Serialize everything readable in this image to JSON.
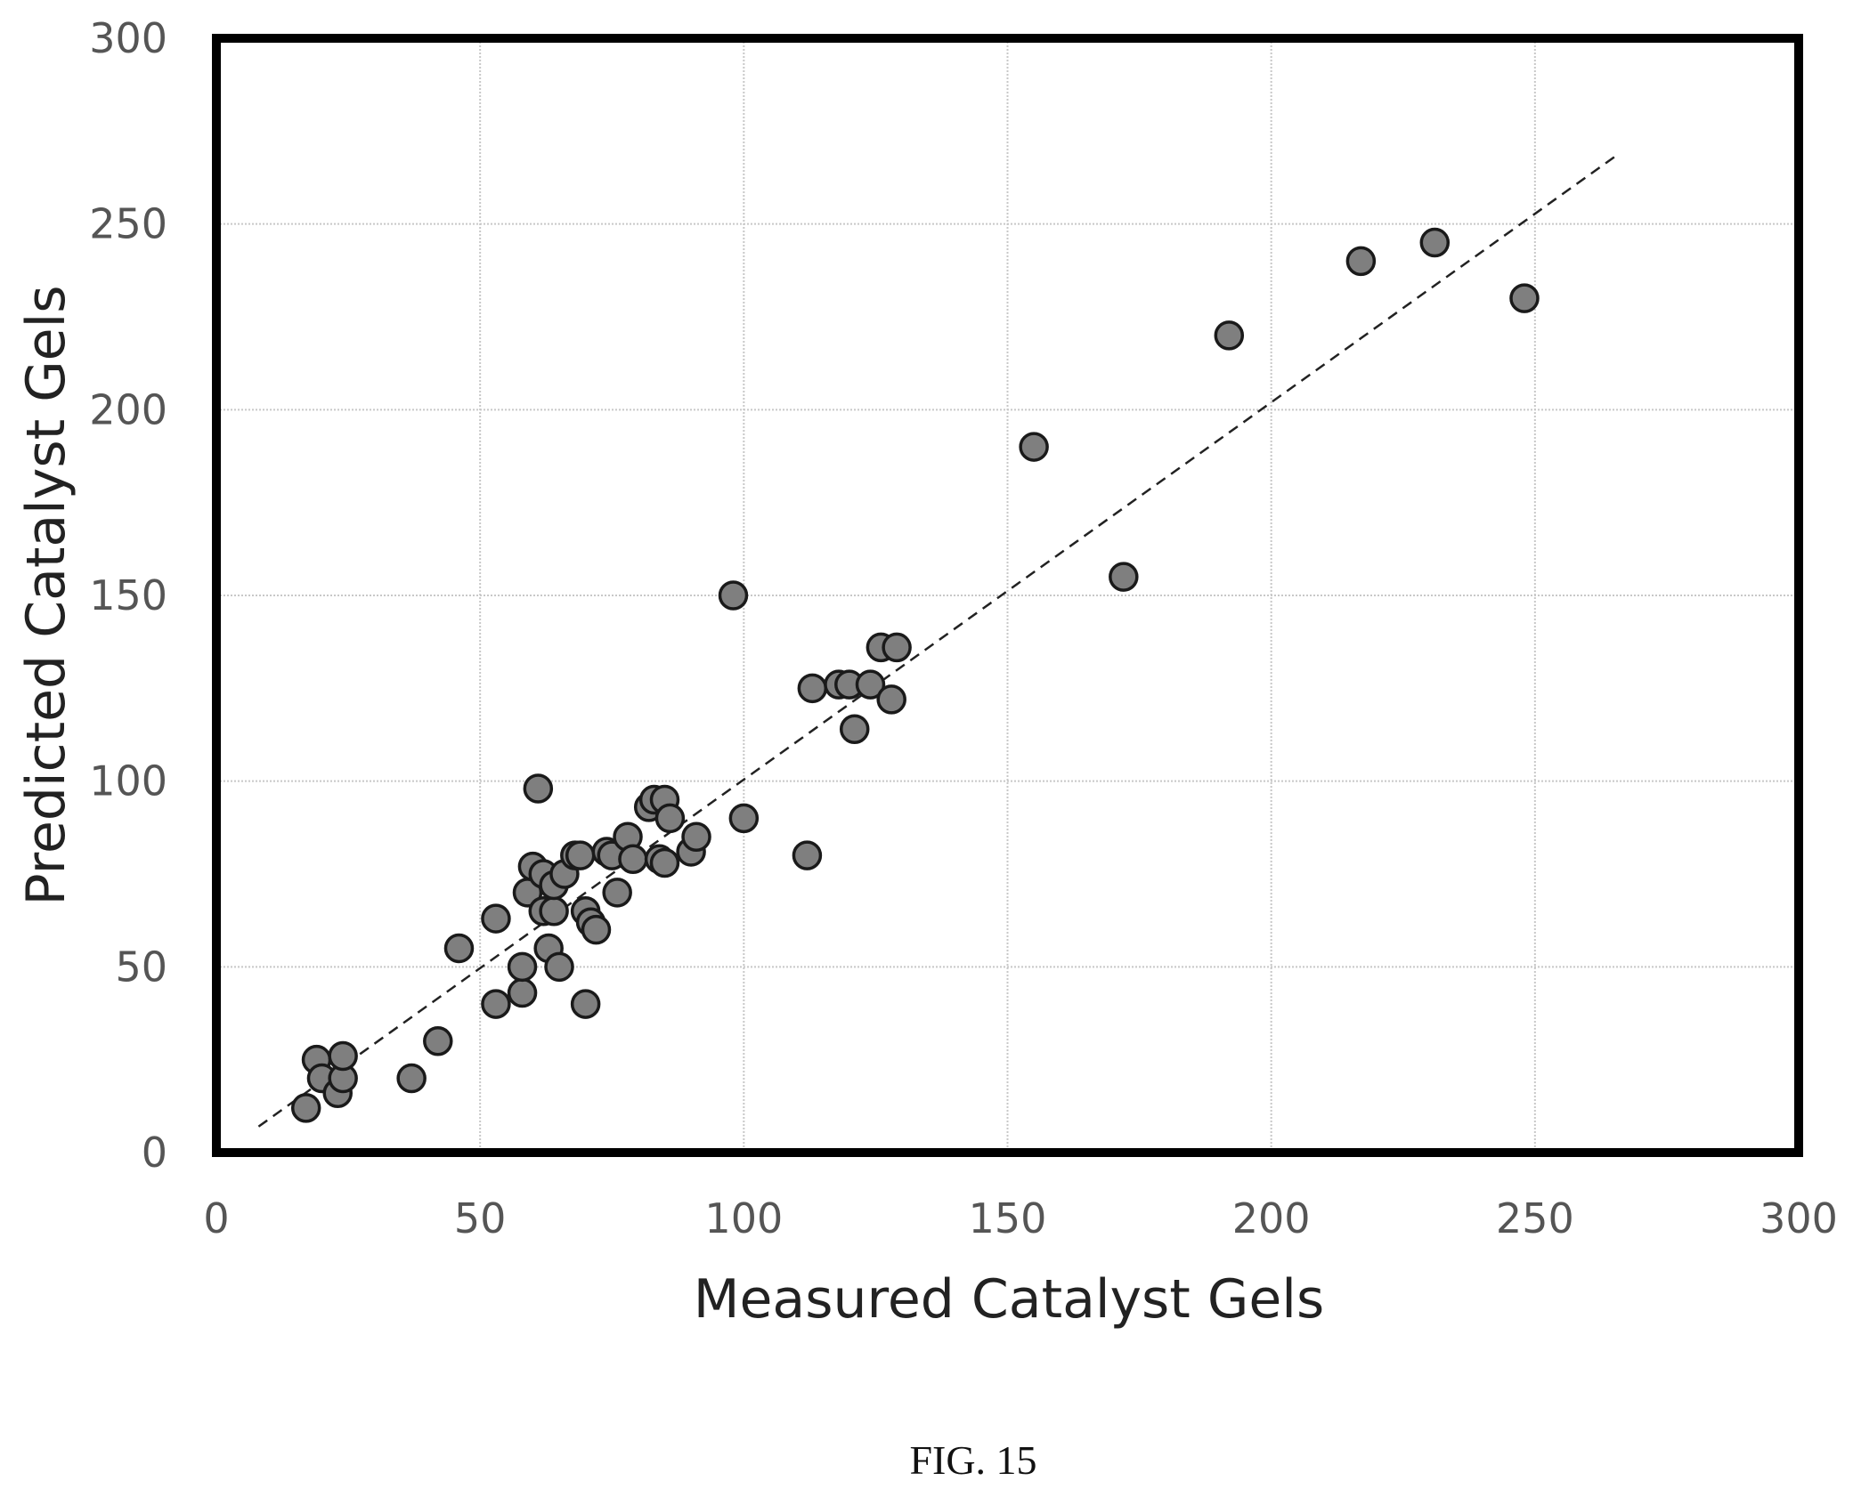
{
  "chart_data": {
    "type": "scatter",
    "title": "",
    "xlabel": "Measured Catalyst Gels",
    "ylabel": "Predicted Catalyst Gels",
    "xlim": [
      0,
      300
    ],
    "ylim": [
      0,
      300
    ],
    "xticks": [
      "0",
      "50",
      "100",
      "150",
      "200",
      "250",
      "300"
    ],
    "yticks": [
      "0",
      "50",
      "100",
      "150",
      "200",
      "250",
      "300"
    ],
    "grid": true,
    "legend": "none",
    "caption": "FIG. 15",
    "trend_line": {
      "style": "dashed",
      "x": [
        8,
        266
      ],
      "y": [
        7,
        269
      ]
    },
    "marker_color": "#7f7f7f",
    "marker_edge_color": "#1a1a1a",
    "points": [
      {
        "x": 17,
        "y": 12
      },
      {
        "x": 19,
        "y": 25
      },
      {
        "x": 20,
        "y": 20
      },
      {
        "x": 23,
        "y": 16
      },
      {
        "x": 24,
        "y": 20
      },
      {
        "x": 24,
        "y": 26
      },
      {
        "x": 37,
        "y": 20
      },
      {
        "x": 42,
        "y": 30
      },
      {
        "x": 46,
        "y": 55
      },
      {
        "x": 53,
        "y": 40
      },
      {
        "x": 53,
        "y": 63
      },
      {
        "x": 58,
        "y": 43
      },
      {
        "x": 58,
        "y": 50
      },
      {
        "x": 59,
        "y": 70
      },
      {
        "x": 60,
        "y": 77
      },
      {
        "x": 61,
        "y": 98
      },
      {
        "x": 62,
        "y": 65
      },
      {
        "x": 62,
        "y": 75
      },
      {
        "x": 63,
        "y": 55
      },
      {
        "x": 64,
        "y": 65
      },
      {
        "x": 64,
        "y": 72
      },
      {
        "x": 65,
        "y": 50
      },
      {
        "x": 66,
        "y": 75
      },
      {
        "x": 68,
        "y": 80
      },
      {
        "x": 69,
        "y": 80
      },
      {
        "x": 70,
        "y": 40
      },
      {
        "x": 70,
        "y": 65
      },
      {
        "x": 71,
        "y": 62
      },
      {
        "x": 72,
        "y": 60
      },
      {
        "x": 74,
        "y": 81
      },
      {
        "x": 75,
        "y": 80
      },
      {
        "x": 76,
        "y": 70
      },
      {
        "x": 78,
        "y": 85
      },
      {
        "x": 79,
        "y": 79
      },
      {
        "x": 82,
        "y": 93
      },
      {
        "x": 83,
        "y": 95
      },
      {
        "x": 84,
        "y": 79
      },
      {
        "x": 85,
        "y": 95
      },
      {
        "x": 85,
        "y": 78
      },
      {
        "x": 86,
        "y": 90
      },
      {
        "x": 90,
        "y": 81
      },
      {
        "x": 91,
        "y": 85
      },
      {
        "x": 98,
        "y": 150
      },
      {
        "x": 100,
        "y": 90
      },
      {
        "x": 112,
        "y": 80
      },
      {
        "x": 113,
        "y": 125
      },
      {
        "x": 118,
        "y": 126
      },
      {
        "x": 120,
        "y": 126
      },
      {
        "x": 121,
        "y": 114
      },
      {
        "x": 124,
        "y": 126
      },
      {
        "x": 126,
        "y": 136
      },
      {
        "x": 128,
        "y": 122
      },
      {
        "x": 129,
        "y": 136
      },
      {
        "x": 155,
        "y": 190
      },
      {
        "x": 172,
        "y": 155
      },
      {
        "x": 192,
        "y": 220
      },
      {
        "x": 217,
        "y": 240
      },
      {
        "x": 231,
        "y": 245
      },
      {
        "x": 248,
        "y": 230
      }
    ]
  }
}
